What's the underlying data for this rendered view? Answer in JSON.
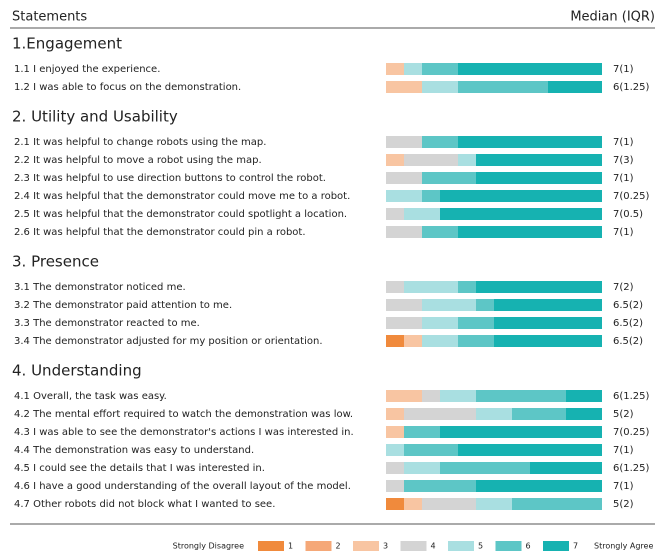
{
  "chart_data": {
    "type": "likert",
    "header_left": "Statements",
    "header_right": "Median (IQR)",
    "levels": [
      "1",
      "2",
      "3",
      "4",
      "5",
      "6",
      "7"
    ],
    "colors": [
      "#f08a3c",
      "#f5a878",
      "#f8c5a2",
      "#d4d4d4",
      "#a9dfe1",
      "#5dc6c6",
      "#16b2b1"
    ],
    "legend_left": "Strongly Disagree",
    "legend_right": "Strongly Agree",
    "groups": [
      {
        "title": "1.Engagement",
        "items": [
          {
            "label": "1.1 I enjoyed the experience.",
            "values": [
              0,
              0,
              1,
              0,
              1,
              2,
              8
            ],
            "median": "7(1)"
          },
          {
            "label": "1.2 I was able to focus on the demonstration.",
            "values": [
              0,
              0,
              2,
              0,
              2,
              5,
              3
            ],
            "median": "6(1.25)"
          }
        ]
      },
      {
        "title": "2. Utility and Usability",
        "items": [
          {
            "label": "2.1 It was helpful to change robots using the map.",
            "values": [
              0,
              0,
              0,
              2,
              0,
              2,
              8
            ],
            "median": "7(1)"
          },
          {
            "label": "2.2 It was helpful to move a robot using the map.",
            "values": [
              0,
              0,
              1,
              3,
              1,
              0,
              7
            ],
            "median": "7(3)"
          },
          {
            "label": "2.3 It was helpful to use direction buttons to control the robot.",
            "values": [
              0,
              0,
              0,
              2,
              0,
              3,
              7
            ],
            "median": "7(1)"
          },
          {
            "label": "2.4 It was helpful that the demonstrator could move me to a robot.",
            "values": [
              0,
              0,
              0,
              0,
              2,
              1,
              9
            ],
            "median": "7(0.25)"
          },
          {
            "label": "2.5 It was helpful that the demonstrator could spotlight a location.",
            "values": [
              0,
              0,
              0,
              1,
              2,
              0,
              9
            ],
            "median": "7(0.5)"
          },
          {
            "label": "2.6 It was helpful that the demonstrator could pin a robot.",
            "values": [
              0,
              0,
              0,
              2,
              0,
              2,
              8
            ],
            "median": "7(1)"
          }
        ]
      },
      {
        "title": "3. Presence",
        "items": [
          {
            "label": "3.1 The demonstrator noticed me.",
            "values": [
              0,
              0,
              0,
              1,
              3,
              1,
              7
            ],
            "median": "7(2)"
          },
          {
            "label": "3.2 The demonstrator paid attention to me.",
            "values": [
              0,
              0,
              0,
              2,
              3,
              1,
              6
            ],
            "median": "6.5(2)"
          },
          {
            "label": "3.3 The demonstrator reacted to me.",
            "values": [
              0,
              0,
              0,
              2,
              2,
              2,
              6
            ],
            "median": "6.5(2)"
          },
          {
            "label": "3.4 The demonstrator adjusted for my position or orientation.",
            "values": [
              1,
              0,
              1,
              0,
              2,
              2,
              6
            ],
            "median": "6.5(2)"
          }
        ]
      },
      {
        "title": "4. Understanding",
        "items": [
          {
            "label": "4.1 Overall, the task was easy.",
            "values": [
              0,
              0,
              2,
              1,
              2,
              5,
              2
            ],
            "median": "6(1.25)"
          },
          {
            "label": "4.2 The mental effort required to watch the demonstration was low.",
            "values": [
              0,
              0,
              1,
              4,
              2,
              3,
              2
            ],
            "median": "5(2)"
          },
          {
            "label": "4.3 I was able to see the demonstrator's actions  I was interested in.",
            "values": [
              0,
              0,
              1,
              0,
              0,
              2,
              9
            ],
            "median": "7(0.25)"
          },
          {
            "label": "4.4 The demonstration was easy to understand.",
            "values": [
              0,
              0,
              0,
              0,
              1,
              3,
              8
            ],
            "median": "7(1)"
          },
          {
            "label": "4.5 I could see the details that I was interested in.",
            "values": [
              0,
              0,
              0,
              1,
              2,
              5,
              4
            ],
            "median": "6(1.25)"
          },
          {
            "label": "4.6 I have a good understanding of the overall layout of the model.",
            "values": [
              0,
              0,
              0,
              1,
              0,
              4,
              7
            ],
            "median": "7(1)"
          },
          {
            "label": "4.7 Other robots did not block what I wanted to see.",
            "values": [
              1,
              0,
              1,
              3,
              2,
              5,
              0
            ],
            "median": "5(2)"
          }
        ]
      }
    ]
  }
}
